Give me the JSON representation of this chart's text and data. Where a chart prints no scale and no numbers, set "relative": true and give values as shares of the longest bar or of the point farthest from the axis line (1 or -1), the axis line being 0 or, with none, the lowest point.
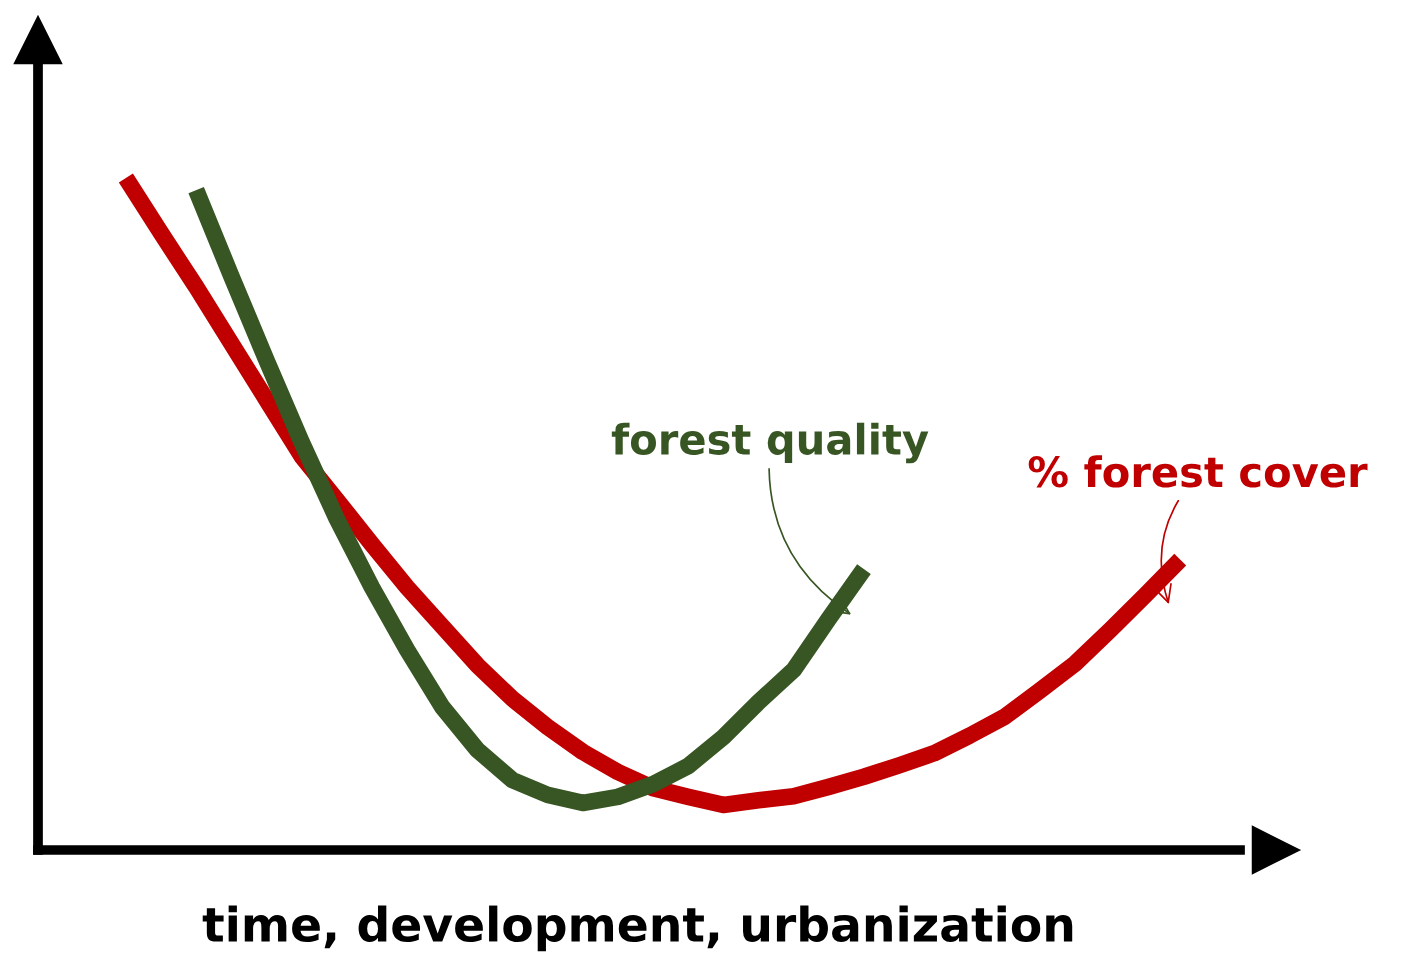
{
  "chart_data": {
    "type": "line",
    "relative": true,
    "tick_labels": false,
    "xlabel": "time, development, urbanization",
    "categories": [
      null,
      null,
      null,
      null,
      null,
      null,
      null,
      null,
      null,
      null,
      null,
      null,
      null,
      null,
      null,
      null,
      null,
      null,
      null,
      null,
      null,
      null,
      null,
      null,
      null,
      null,
      null,
      null,
      null,
      null,
      null
    ],
    "series": [
      {
        "name": "% forest cover",
        "color": "#c00000",
        "values": [
          1.0,
          0.918,
          0.838,
          0.754,
          0.67,
          0.586,
          0.521,
          0.455,
          0.391,
          0.333,
          0.275,
          0.225,
          0.183,
          0.146,
          0.116,
          0.092,
          0.079,
          0.067,
          0.074,
          0.08,
          0.094,
          0.109,
          0.126,
          0.144,
          0.17,
          0.198,
          0.237,
          0.277,
          0.327,
          0.379,
          0.432
        ]
      },
      {
        "name": "forest quality",
        "color": "#375623",
        "values": [
          null,
          null,
          0.982,
          0.854,
          0.729,
          0.607,
          0.493,
          0.391,
          0.298,
          0.213,
          0.149,
          0.104,
          0.082,
          0.07,
          0.079,
          0.098,
          0.125,
          0.168,
          0.22,
          0.268,
          0.344,
          0.418,
          null,
          null,
          null,
          null,
          null,
          null,
          null,
          null,
          null
        ]
      }
    ]
  }
}
